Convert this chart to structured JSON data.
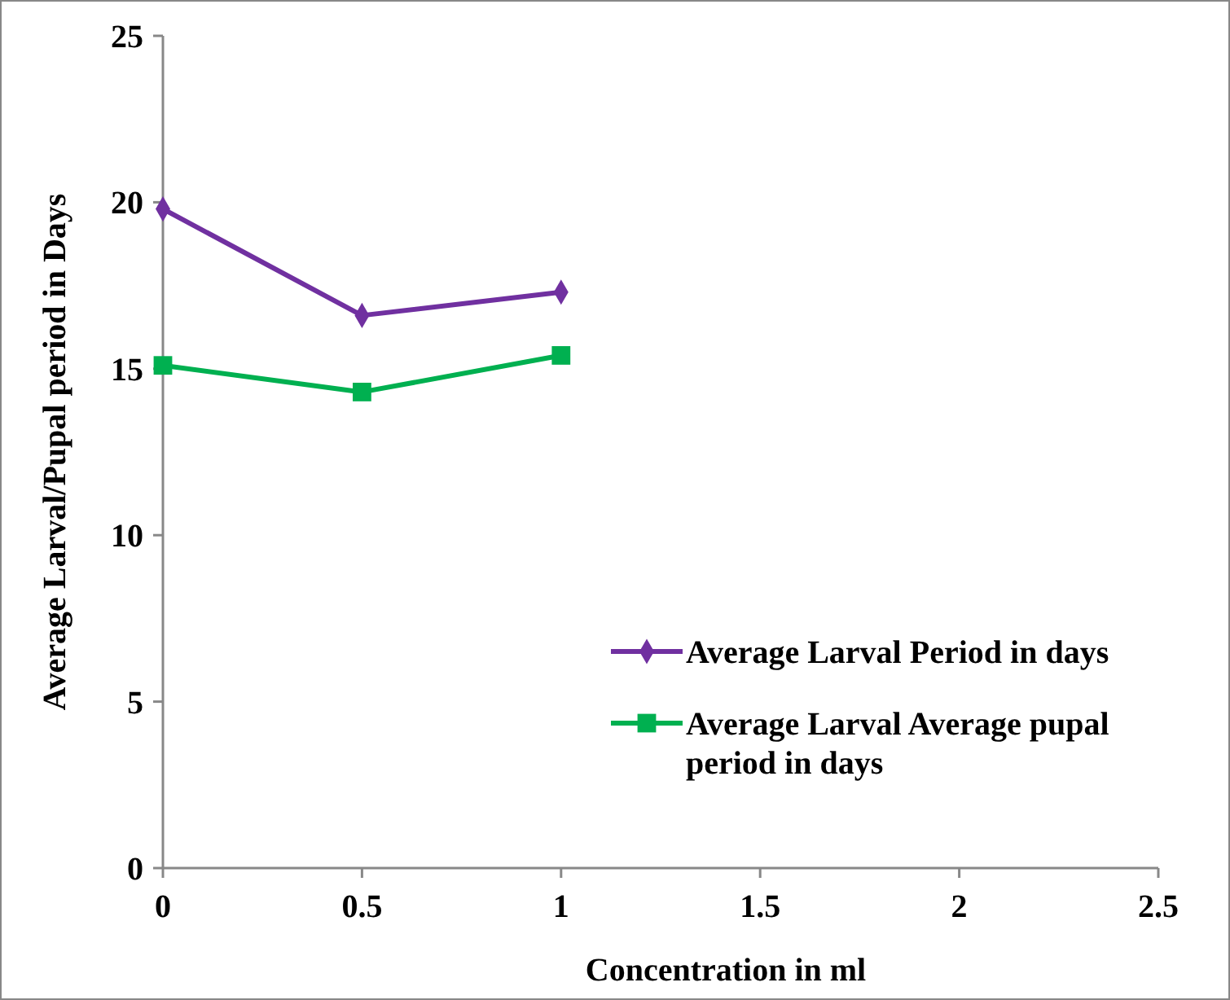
{
  "chart_data": {
    "type": "line",
    "xlabel": "Concentration  in ml",
    "ylabel": "Average Larval/Pupal period in Days",
    "x": [
      0,
      0.5,
      1
    ],
    "series": [
      {
        "name": "Average Larval Period in days",
        "color": "#7030a0",
        "values": [
          19.8,
          16.6,
          17.3
        ],
        "marker": "diamond"
      },
      {
        "name": "Average Larval Average pupal period in days",
        "color": "#00b050",
        "values": [
          15.1,
          14.3,
          15.4
        ],
        "marker": "square"
      }
    ],
    "xlim": [
      0,
      2.5
    ],
    "xticks": [
      0,
      0.5,
      1,
      1.5,
      2,
      2.5
    ],
    "ylim": [
      0,
      25
    ],
    "yticks": [
      0,
      5,
      10,
      15,
      20,
      25
    ],
    "grid": false,
    "legend": "right",
    "line_style": "solid"
  }
}
